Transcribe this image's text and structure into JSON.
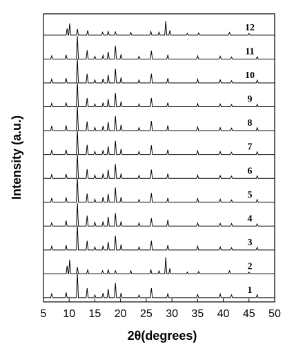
{
  "chart_data": {
    "type": "line",
    "x_label": "2θ(degrees)",
    "y_label": "Intensity (a.u.)",
    "xlim": [
      5,
      50
    ],
    "xticks": [
      5,
      10,
      15,
      20,
      25,
      30,
      35,
      40,
      45,
      50
    ],
    "series": [
      {
        "name": "1",
        "color": "#000000",
        "x": [
          5,
          6.4,
          6.6,
          6.8,
          9.2,
          9.4,
          9.6,
          11.4,
          11.6,
          11.8,
          13.3,
          13.5,
          13.7,
          14.8,
          15,
          15.2,
          16.4,
          16.6,
          16.8,
          17.4,
          17.6,
          17.8,
          18.8,
          19,
          19.2,
          19.9,
          20.1,
          20.3,
          23.4,
          23.6,
          23.8,
          25.8,
          26,
          26.2,
          29,
          29.2,
          29.4,
          34.8,
          35,
          35.2,
          39.2,
          39.4,
          39.6,
          41.4,
          41.6,
          41.8,
          46.4,
          46.6,
          46.8,
          50
        ],
        "values": [
          3,
          3,
          20,
          3,
          3,
          24,
          3,
          3,
          100,
          3,
          3,
          42,
          3,
          3,
          14,
          3,
          3,
          22,
          3,
          3,
          38,
          3,
          3,
          62,
          3,
          3,
          22,
          3,
          3,
          14,
          3,
          3,
          42,
          3,
          3,
          20,
          3,
          3,
          16,
          3,
          3,
          18,
          3,
          3,
          14,
          3,
          3,
          15,
          3,
          3
        ]
      },
      {
        "name": "2",
        "color": "#000000",
        "x": [
          5,
          9.4,
          9.6,
          9.8,
          9.9,
          10.1,
          10.3,
          11.4,
          11.6,
          11.8,
          13.4,
          13.6,
          13.8,
          16.3,
          16.5,
          16.7,
          17.4,
          17.6,
          17.8,
          18.8,
          19,
          19.2,
          21.8,
          22,
          22.2,
          25.7,
          25.9,
          26.1,
          27.3,
          27.5,
          27.7,
          28.6,
          28.8,
          29,
          29.4,
          29.6,
          29.8,
          32.8,
          33,
          33.2,
          35,
          35.2,
          35.4,
          41,
          41.2,
          41.4,
          44.8,
          45,
          45.2,
          50
        ],
        "values": [
          3,
          3,
          35,
          3,
          3,
          60,
          3,
          3,
          30,
          3,
          3,
          20,
          3,
          3,
          15,
          3,
          3,
          20,
          3,
          3,
          15,
          3,
          3,
          15,
          3,
          3,
          20,
          3,
          3,
          15,
          3,
          3,
          70,
          3,
          3,
          25,
          3,
          3,
          10,
          3,
          3,
          12,
          3,
          3,
          15,
          3,
          3,
          10,
          3,
          3
        ]
      },
      {
        "name": "3",
        "color": "#000000",
        "x": [
          5,
          6.4,
          6.6,
          6.8,
          9.2,
          9.4,
          9.6,
          11.4,
          11.6,
          11.8,
          13.3,
          13.5,
          13.7,
          14.8,
          15,
          15.2,
          16.4,
          16.6,
          16.8,
          17.4,
          17.6,
          17.8,
          18.8,
          19,
          19.2,
          19.9,
          20.1,
          20.3,
          23.4,
          23.6,
          23.8,
          25.8,
          26,
          26.2,
          29,
          29.2,
          29.4,
          34.8,
          35,
          35.2,
          39.2,
          39.4,
          39.6,
          41.4,
          41.6,
          41.8,
          46.4,
          46.6,
          46.8,
          50
        ],
        "values": [
          3,
          3,
          18,
          3,
          3,
          22,
          3,
          3,
          100,
          3,
          3,
          40,
          3,
          3,
          15,
          3,
          3,
          20,
          3,
          3,
          35,
          3,
          3,
          60,
          3,
          3,
          25,
          3,
          3,
          15,
          3,
          3,
          40,
          3,
          3,
          22,
          3,
          3,
          18,
          3,
          3,
          15,
          3,
          3,
          12,
          3,
          3,
          14,
          3,
          3
        ]
      },
      {
        "name": "4",
        "color": "#000000",
        "x": [
          5,
          6.4,
          6.6,
          6.8,
          9.2,
          9.4,
          9.6,
          11.4,
          11.6,
          11.8,
          13.3,
          13.5,
          13.7,
          14.8,
          15,
          15.2,
          16.4,
          16.6,
          16.8,
          17.4,
          17.6,
          17.8,
          18.8,
          19,
          19.2,
          19.9,
          20.1,
          20.3,
          23.4,
          23.6,
          23.8,
          25.8,
          26,
          26.2,
          29,
          29.2,
          29.4,
          34.8,
          35,
          35.2,
          39.2,
          39.4,
          39.6,
          41.4,
          41.6,
          41.8,
          46.4,
          46.6,
          46.8,
          50
        ],
        "values": [
          3,
          3,
          16,
          3,
          3,
          25,
          3,
          3,
          95,
          3,
          3,
          45,
          3,
          3,
          18,
          3,
          3,
          22,
          3,
          3,
          40,
          3,
          3,
          55,
          3,
          3,
          22,
          3,
          3,
          16,
          3,
          3,
          35,
          3,
          3,
          28,
          3,
          3,
          15,
          3,
          3,
          14,
          3,
          3,
          13,
          3,
          3,
          12,
          3,
          3
        ]
      },
      {
        "name": "5",
        "color": "#000000",
        "x": [
          5,
          6.4,
          6.6,
          6.8,
          9.2,
          9.4,
          9.6,
          11.4,
          11.6,
          11.8,
          13.3,
          13.5,
          13.7,
          14.8,
          15,
          15.2,
          16.4,
          16.6,
          16.8,
          17.4,
          17.6,
          17.8,
          18.8,
          19,
          19.2,
          19.9,
          20.1,
          20.3,
          23.4,
          23.6,
          23.8,
          25.8,
          26,
          26.2,
          29,
          29.2,
          29.4,
          34.8,
          35,
          35.2,
          39.2,
          39.4,
          39.6,
          41.4,
          41.6,
          41.8,
          46.4,
          46.6,
          46.8,
          50
        ],
        "values": [
          3,
          3,
          20,
          3,
          3,
          22,
          3,
          3,
          100,
          3,
          3,
          38,
          3,
          3,
          15,
          3,
          3,
          24,
          3,
          3,
          36,
          3,
          3,
          62,
          3,
          3,
          24,
          3,
          3,
          14,
          3,
          3,
          40,
          3,
          3,
          20,
          3,
          3,
          18,
          3,
          3,
          15,
          3,
          3,
          12,
          3,
          3,
          14,
          3,
          3
        ]
      },
      {
        "name": "6",
        "color": "#000000",
        "x": [
          5,
          6.4,
          6.6,
          6.8,
          9.2,
          9.4,
          9.6,
          11.4,
          11.6,
          11.8,
          13.3,
          13.5,
          13.7,
          14.8,
          15,
          15.2,
          16.4,
          16.6,
          16.8,
          17.4,
          17.6,
          17.8,
          18.8,
          19,
          19.2,
          19.9,
          20.1,
          20.3,
          23.4,
          23.6,
          23.8,
          25.8,
          26,
          26.2,
          29,
          29.2,
          29.4,
          34.8,
          35,
          35.2,
          39.2,
          39.4,
          39.6,
          41.4,
          41.6,
          41.8,
          46.4,
          46.6,
          46.8,
          50
        ],
        "values": [
          3,
          3,
          18,
          3,
          3,
          20,
          3,
          3,
          100,
          3,
          3,
          40,
          3,
          3,
          16,
          3,
          3,
          22,
          3,
          3,
          38,
          3,
          3,
          60,
          3,
          3,
          22,
          3,
          3,
          15,
          3,
          3,
          38,
          3,
          3,
          22,
          3,
          3,
          16,
          3,
          3,
          14,
          3,
          3,
          12,
          3,
          3,
          13,
          3,
          3
        ]
      },
      {
        "name": "7",
        "color": "#000000",
        "x": [
          5,
          6.4,
          6.6,
          6.8,
          9.2,
          9.4,
          9.6,
          11.4,
          11.6,
          11.8,
          13.3,
          13.5,
          13.7,
          14.8,
          15,
          15.2,
          16.4,
          16.6,
          16.8,
          17.4,
          17.6,
          17.8,
          18.8,
          19,
          19.2,
          19.9,
          20.1,
          20.3,
          23.4,
          23.6,
          23.8,
          25.8,
          26,
          26.2,
          29,
          29.2,
          29.4,
          34.8,
          35,
          35.2,
          39.2,
          39.4,
          39.6,
          41.4,
          41.6,
          41.8,
          46.4,
          46.6,
          46.8,
          50
        ],
        "values": [
          3,
          3,
          19,
          3,
          3,
          22,
          3,
          3,
          100,
          3,
          3,
          42,
          3,
          3,
          15,
          3,
          3,
          20,
          3,
          3,
          36,
          3,
          3,
          58,
          3,
          3,
          25,
          3,
          3,
          15,
          3,
          3,
          40,
          3,
          3,
          22,
          3,
          3,
          18,
          3,
          3,
          15,
          3,
          3,
          12,
          3,
          3,
          14,
          3,
          3
        ]
      },
      {
        "name": "8",
        "color": "#000000",
        "x": [
          5,
          6.4,
          6.6,
          6.8,
          9.2,
          9.4,
          9.6,
          11.4,
          11.6,
          11.8,
          13.3,
          13.5,
          13.7,
          14.8,
          15,
          15.2,
          16.4,
          16.6,
          16.8,
          17.4,
          17.6,
          17.8,
          18.8,
          19,
          19.2,
          19.9,
          20.1,
          20.3,
          23.4,
          23.6,
          23.8,
          25.8,
          26,
          26.2,
          29,
          29.2,
          29.4,
          34.8,
          35,
          35.2,
          39.2,
          39.4,
          39.6,
          41.4,
          41.6,
          41.8,
          46.4,
          46.6,
          46.8,
          50
        ],
        "values": [
          3,
          3,
          22,
          3,
          3,
          24,
          3,
          3,
          100,
          3,
          3,
          40,
          3,
          3,
          16,
          3,
          3,
          22,
          3,
          3,
          38,
          3,
          3,
          62,
          3,
          3,
          26,
          3,
          3,
          15,
          3,
          3,
          42,
          3,
          3,
          24,
          3,
          3,
          18,
          3,
          3,
          15,
          3,
          3,
          13,
          3,
          3,
          15,
          3,
          3
        ]
      },
      {
        "name": "9",
        "color": "#000000",
        "x": [
          5,
          6.4,
          6.6,
          6.8,
          9.2,
          9.4,
          9.6,
          11.4,
          11.6,
          11.8,
          13.3,
          13.5,
          13.7,
          14.8,
          15,
          15.2,
          16.4,
          16.6,
          16.8,
          17.4,
          17.6,
          17.8,
          18.8,
          19,
          19.2,
          19.9,
          20.1,
          20.3,
          23.4,
          23.6,
          23.8,
          25.8,
          26,
          26.2,
          29,
          29.2,
          29.4,
          34.8,
          35,
          35.2,
          39.2,
          39.4,
          39.6,
          41.4,
          41.6,
          41.8,
          46.4,
          46.6,
          46.8,
          50
        ],
        "values": [
          3,
          3,
          17,
          3,
          3,
          20,
          3,
          3,
          100,
          3,
          3,
          38,
          3,
          3,
          14,
          3,
          3,
          20,
          3,
          3,
          34,
          3,
          3,
          58,
          3,
          3,
          24,
          3,
          3,
          14,
          3,
          3,
          38,
          3,
          3,
          20,
          3,
          3,
          16,
          3,
          3,
          14,
          3,
          3,
          12,
          3,
          3,
          13,
          3,
          3
        ]
      },
      {
        "name": "10",
        "color": "#000000",
        "x": [
          5,
          6.4,
          6.6,
          6.8,
          9.2,
          9.4,
          9.6,
          11.4,
          11.6,
          11.8,
          13.3,
          13.5,
          13.7,
          14.8,
          15,
          15.2,
          16.4,
          16.6,
          16.8,
          17.4,
          17.6,
          17.8,
          18.8,
          19,
          19.2,
          19.9,
          20.1,
          20.3,
          23.4,
          23.6,
          23.8,
          25.8,
          26,
          26.2,
          29,
          29.2,
          29.4,
          34.8,
          35,
          35.2,
          39.2,
          39.4,
          39.6,
          41.4,
          41.6,
          41.8,
          46.4,
          46.6,
          46.8,
          50
        ],
        "values": [
          3,
          3,
          18,
          3,
          3,
          22,
          3,
          3,
          100,
          3,
          3,
          40,
          3,
          3,
          15,
          3,
          3,
          20,
          3,
          3,
          35,
          3,
          3,
          60,
          3,
          3,
          25,
          3,
          3,
          15,
          3,
          3,
          40,
          3,
          3,
          22,
          3,
          3,
          18,
          3,
          3,
          15,
          3,
          3,
          12,
          3,
          3,
          14,
          3,
          3
        ]
      },
      {
        "name": "11",
        "color": "#000000",
        "x": [
          5,
          6.4,
          6.6,
          6.8,
          9.2,
          9.4,
          9.6,
          11.4,
          11.6,
          11.8,
          13.3,
          13.5,
          13.7,
          14.8,
          15,
          15.2,
          16.4,
          16.6,
          16.8,
          17.4,
          17.6,
          17.8,
          18.8,
          19,
          19.2,
          19.9,
          20.1,
          20.3,
          23.4,
          23.6,
          23.8,
          25.8,
          26,
          26.2,
          29,
          29.2,
          29.4,
          34.8,
          35,
          35.2,
          39.2,
          39.4,
          39.6,
          41.4,
          41.6,
          41.8,
          46.4,
          46.6,
          46.8,
          50
        ],
        "values": [
          3,
          3,
          16,
          3,
          3,
          20,
          3,
          3,
          95,
          3,
          3,
          38,
          3,
          3,
          14,
          3,
          3,
          18,
          3,
          3,
          32,
          3,
          3,
          56,
          3,
          3,
          22,
          3,
          3,
          14,
          3,
          3,
          36,
          3,
          3,
          20,
          3,
          3,
          16,
          3,
          3,
          14,
          3,
          3,
          11,
          3,
          3,
          12,
          3,
          3
        ]
      },
      {
        "name": "12",
        "color": "#000000",
        "x": [
          5,
          9.4,
          9.6,
          9.8,
          9.9,
          10.1,
          10.3,
          11.4,
          11.6,
          11.8,
          13.4,
          13.6,
          13.8,
          16.3,
          16.5,
          16.7,
          17.4,
          17.6,
          17.8,
          18.8,
          19,
          19.2,
          21.8,
          22,
          22.2,
          25.7,
          25.9,
          26.1,
          27.3,
          27.5,
          27.7,
          28.6,
          28.8,
          29,
          29.4,
          29.6,
          29.8,
          32.8,
          33,
          33.2,
          35,
          35.2,
          35.4,
          41,
          41.2,
          41.4,
          44.8,
          45,
          45.2,
          50
        ],
        "values": [
          3,
          3,
          30,
          3,
          3,
          50,
          3,
          3,
          28,
          3,
          3,
          22,
          3,
          3,
          15,
          3,
          3,
          18,
          3,
          3,
          16,
          3,
          3,
          14,
          3,
          3,
          18,
          3,
          3,
          15,
          3,
          3,
          60,
          3,
          3,
          22,
          3,
          3,
          10,
          3,
          3,
          12,
          3,
          3,
          14,
          3,
          3,
          10,
          3,
          3
        ]
      }
    ]
  }
}
